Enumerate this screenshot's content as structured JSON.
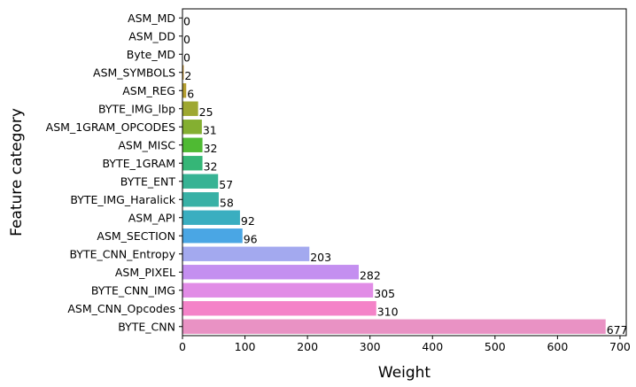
{
  "chart_data": {
    "type": "bar",
    "orientation": "horizontal",
    "xlabel": "Weight",
    "ylabel": "Feature category",
    "xlim": [
      0,
      710
    ],
    "xticks": [
      0,
      100,
      200,
      300,
      400,
      500,
      600,
      700
    ],
    "grid": false,
    "categories": [
      "ASM_MD",
      "ASM_DD",
      "Byte_MD",
      "ASM_SYMBOLS",
      "ASM_REG",
      "BYTE_IMG_lbp",
      "ASM_1GRAM_OPCODES",
      "ASM_MISC",
      "BYTE_1GRAM",
      "BYTE_ENT",
      "BYTE_IMG_Haralick",
      "ASM_API",
      "ASM_SECTION",
      "BYTE_CNN_Entropy",
      "ASM_PIXEL",
      "BYTE_CNN_IMG",
      "ASM_CNN_Opcodes",
      "BYTE_CNN"
    ],
    "values": [
      0,
      0,
      0,
      2,
      6,
      25,
      31,
      32,
      32,
      57,
      58,
      92,
      96,
      203,
      282,
      305,
      310,
      677
    ],
    "colors": [
      "#f57b75",
      "#f17f4b",
      "#dd8b32",
      "#c89631",
      "#b59f31",
      "#9ea831",
      "#84af31",
      "#4fba33",
      "#35b677",
      "#37b394",
      "#38b1a6",
      "#3aaec0",
      "#4aa6e4",
      "#a3a9ef",
      "#c48ff0",
      "#e18ce6",
      "#f483c8",
      "#e992c4"
    ]
  }
}
